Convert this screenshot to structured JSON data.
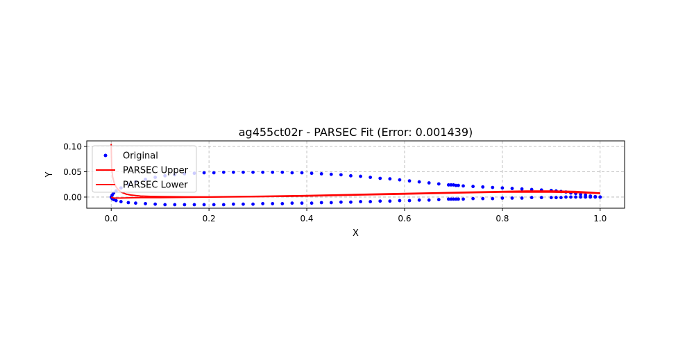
{
  "chart_data": {
    "type": "scatter",
    "title": "ag455ct02r - PARSEC Fit (Error: 0.001439)",
    "xlabel": "X",
    "ylabel": "Y",
    "xlim": [
      -0.05,
      1.05
    ],
    "ylim": [
      -0.022,
      0.111
    ],
    "xticks": [
      "0.0",
      "0.2",
      "0.4",
      "0.6",
      "0.8",
      "1.0"
    ],
    "yticks": [
      "0.00",
      "0.05",
      "0.10"
    ],
    "grid": true,
    "legend_position": "upper left",
    "series": [
      {
        "name": "Original",
        "kind": "scatter",
        "color": "#0000ff",
        "x": [
          1.0,
          0.99,
          0.98,
          0.97,
          0.96,
          0.95,
          0.94,
          0.93,
          0.92,
          0.91,
          0.9,
          0.88,
          0.86,
          0.84,
          0.82,
          0.8,
          0.78,
          0.76,
          0.74,
          0.72,
          0.71,
          0.705,
          0.7,
          0.695,
          0.69,
          0.67,
          0.65,
          0.63,
          0.61,
          0.59,
          0.57,
          0.55,
          0.53,
          0.51,
          0.49,
          0.47,
          0.45,
          0.43,
          0.41,
          0.39,
          0.37,
          0.35,
          0.33,
          0.31,
          0.29,
          0.27,
          0.25,
          0.23,
          0.21,
          0.19,
          0.17,
          0.15,
          0.13,
          0.11,
          0.09,
          0.07,
          0.05,
          0.035,
          0.02,
          0.01,
          0.005,
          0.002,
          0.0,
          0.002,
          0.005,
          0.01,
          0.02,
          0.035,
          0.05,
          0.07,
          0.09,
          0.11,
          0.13,
          0.15,
          0.17,
          0.19,
          0.21,
          0.23,
          0.25,
          0.27,
          0.29,
          0.31,
          0.33,
          0.35,
          0.37,
          0.39,
          0.41,
          0.43,
          0.45,
          0.47,
          0.49,
          0.51,
          0.53,
          0.55,
          0.57,
          0.59,
          0.61,
          0.63,
          0.65,
          0.67,
          0.69,
          0.695,
          0.7,
          0.705,
          0.71,
          0.72,
          0.74,
          0.76,
          0.78,
          0.8,
          0.82,
          0.84,
          0.86,
          0.88,
          0.9,
          0.91,
          0.92,
          0.93,
          0.94,
          0.95,
          0.96,
          0.97,
          0.98,
          0.99,
          1.0
        ],
        "y": [
          0.0,
          0.001,
          0.002,
          0.004,
          0.005,
          0.007,
          0.008,
          0.01,
          0.011,
          0.012,
          0.013,
          0.014,
          0.015,
          0.016,
          0.017,
          0.018,
          0.019,
          0.02,
          0.021,
          0.022,
          0.023,
          0.023,
          0.024,
          0.024,
          0.024,
          0.026,
          0.028,
          0.03,
          0.032,
          0.034,
          0.036,
          0.037,
          0.039,
          0.041,
          0.042,
          0.044,
          0.045,
          0.046,
          0.047,
          0.048,
          0.048,
          0.049,
          0.049,
          0.049,
          0.049,
          0.049,
          0.049,
          0.049,
          0.048,
          0.048,
          0.047,
          0.046,
          0.044,
          0.042,
          0.039,
          0.035,
          0.03,
          0.025,
          0.018,
          0.012,
          0.008,
          0.004,
          0.0,
          -0.003,
          -0.005,
          -0.007,
          -0.009,
          -0.011,
          -0.012,
          -0.013,
          -0.014,
          -0.015,
          -0.015,
          -0.015,
          -0.015,
          -0.015,
          -0.015,
          -0.015,
          -0.014,
          -0.014,
          -0.014,
          -0.013,
          -0.013,
          -0.013,
          -0.012,
          -0.012,
          -0.012,
          -0.011,
          -0.011,
          -0.01,
          -0.01,
          -0.009,
          -0.009,
          -0.008,
          -0.008,
          -0.007,
          -0.007,
          -0.006,
          -0.006,
          -0.005,
          -0.004,
          -0.004,
          -0.004,
          -0.004,
          -0.004,
          -0.004,
          -0.003,
          -0.003,
          -0.003,
          -0.002,
          -0.002,
          -0.002,
          -0.001,
          -0.001,
          -0.001,
          -0.001,
          -0.001,
          0.0,
          0.0,
          0.0,
          0.0,
          0.0,
          0.0,
          0.0,
          0.0
        ]
      },
      {
        "name": "PARSEC Upper",
        "kind": "line",
        "color": "#ff0000",
        "x": [
          0.0,
          0.001,
          0.003,
          0.006,
          0.01,
          0.015,
          0.02,
          0.03,
          0.04,
          0.06,
          0.08,
          0.1,
          0.15,
          0.2,
          0.3,
          0.4,
          0.5,
          0.6,
          0.7,
          0.8,
          0.85,
          0.9,
          0.95,
          1.0
        ],
        "y": [
          0.105,
          0.06,
          0.04,
          0.028,
          0.02,
          0.014,
          0.01,
          0.006,
          0.004,
          0.002,
          0.0013,
          0.001,
          0.0005,
          0.0003,
          0.0015,
          0.003,
          0.005,
          0.007,
          0.009,
          0.011,
          0.012,
          0.012,
          0.011,
          0.008
        ]
      },
      {
        "name": "PARSEC Lower",
        "kind": "line",
        "color": "#ff0000",
        "x": [
          0.0,
          0.002,
          0.005,
          0.01,
          0.02,
          0.04,
          0.06,
          0.1,
          0.2,
          0.3,
          0.4,
          0.5,
          0.6,
          0.7,
          0.8,
          0.9,
          0.95,
          1.0
        ],
        "y": [
          0.0,
          -0.001,
          -0.002,
          -0.002,
          -0.002,
          -0.0015,
          -0.001,
          -0.001,
          0.0,
          0.0007,
          0.002,
          0.004,
          0.006,
          0.008,
          0.01,
          0.01,
          0.009,
          0.007
        ]
      }
    ]
  }
}
